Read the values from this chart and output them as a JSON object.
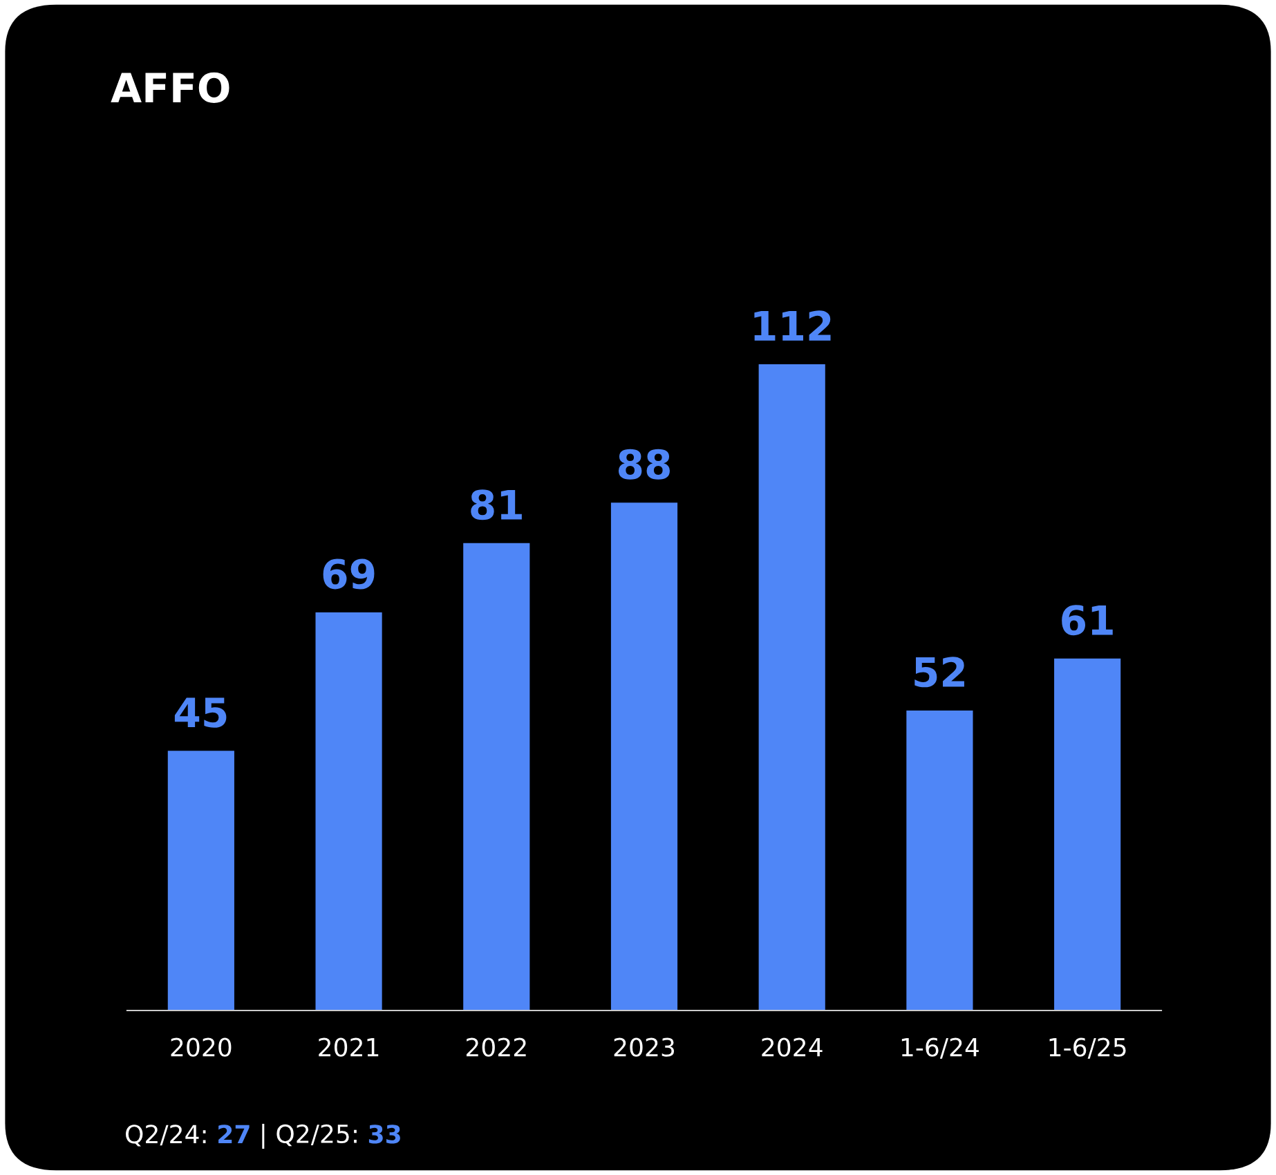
{
  "chart_data": {
    "type": "bar",
    "title": "AFFO",
    "categories": [
      "2020",
      "2021",
      "2022",
      "2023",
      "2024",
      "1-6/24",
      "1-6/25"
    ],
    "values": [
      45,
      69,
      81,
      88,
      112,
      52,
      61
    ],
    "color": "#4f86f7",
    "data_labels": true,
    "grid": false,
    "annotations": [
      "Q2/24: ",
      "27",
      " | Q2/25: ",
      "33"
    ]
  }
}
